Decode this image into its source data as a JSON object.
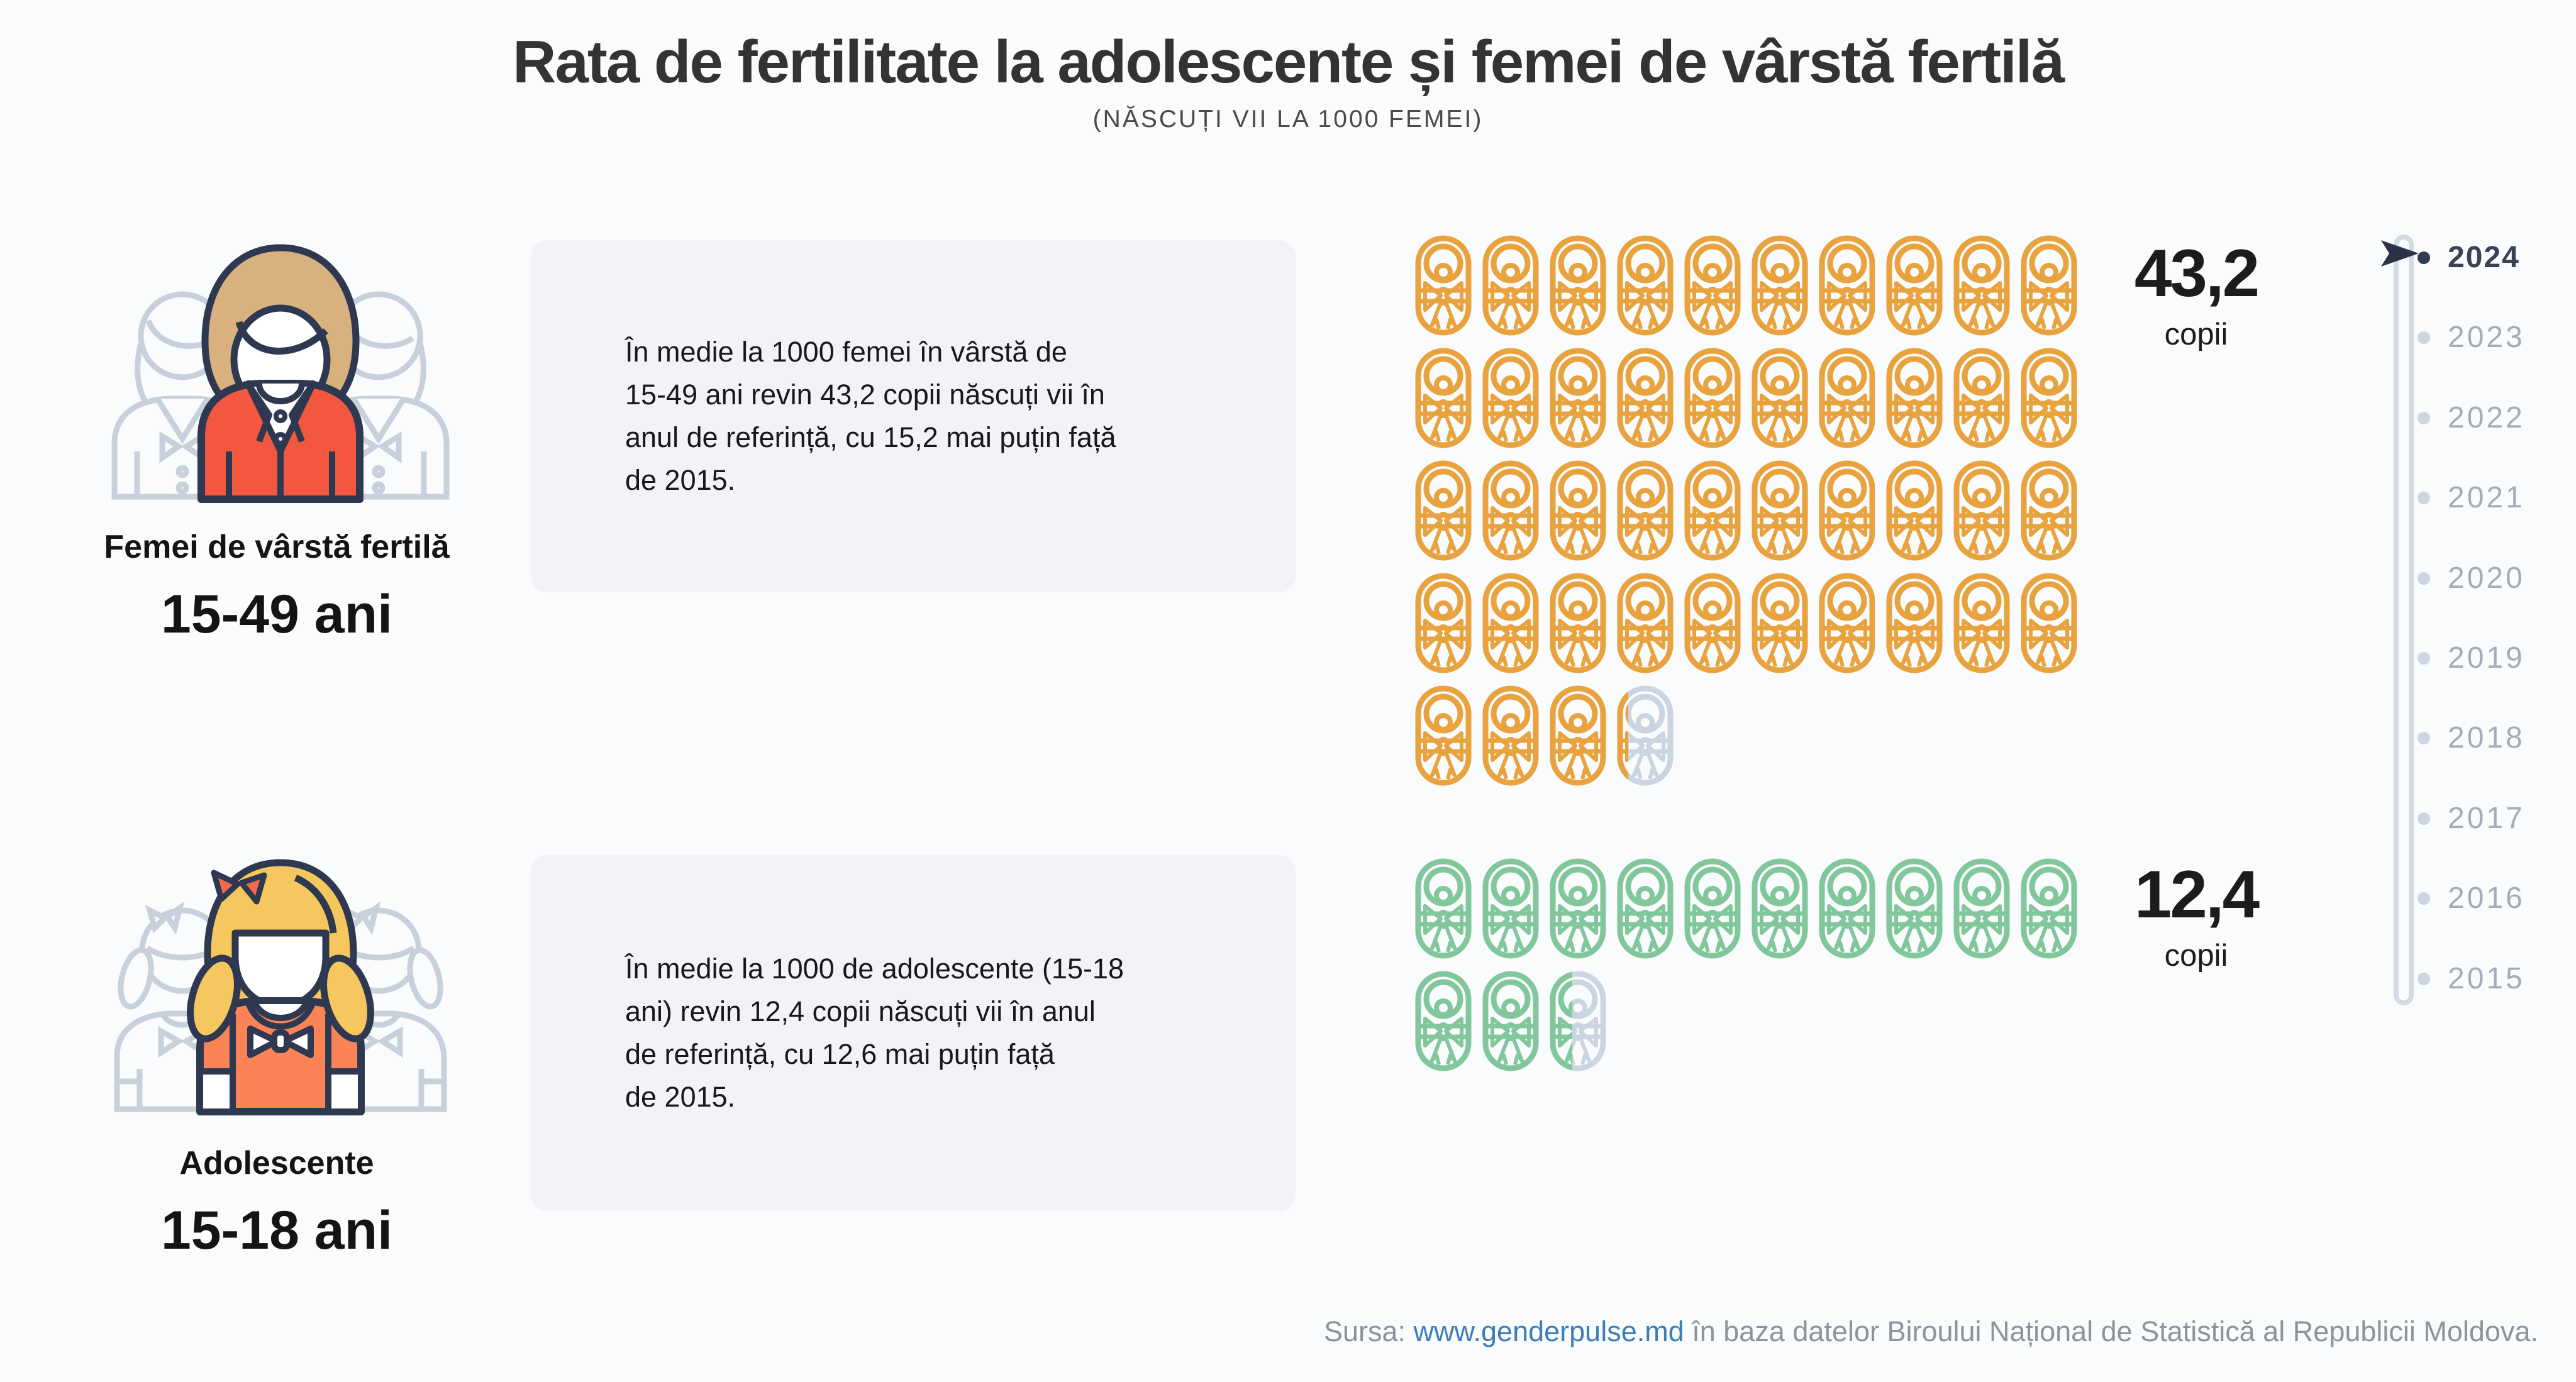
{
  "header": {
    "title": "Rata de fertilitate la adolescente și femei de vârstă fertilă",
    "subtitle": "(NĂSCUȚI VII LA 1000 FEMEI)"
  },
  "groups": [
    {
      "id": "femei",
      "label": "Femei de vârstă fertilă",
      "age_range": "15-49 ani",
      "description": "În medie la 1000 femei în vârstă de\n15-49 ani revin 43,2 copii născuți vii în\nanul de referință, cu 15,2 mai puțin față\nde 2015."
    },
    {
      "id": "adolescente",
      "label": "Adolescente",
      "age_range": "15-18 ani",
      "description": "În medie la 1000 de adolescente (15-18\nani) revin 12,4 copii născuți vii în anul\nde referință, cu 12,6 mai puțin față\nde 2015."
    }
  ],
  "chart_data": [
    {
      "type": "pictogram",
      "title": "Femei de vârstă fertilă (15-49 ani)",
      "value": 43.2,
      "value_label": "43,2",
      "unit_label": "copii",
      "unit": "copii născuți vii la 1000 femei",
      "icons_per_row": 10,
      "icon_unit": 1,
      "icon": "swaddled-baby",
      "color": "#E8A23E",
      "remainder_color": "#CBD5E1",
      "change_vs_2015": -15.2
    },
    {
      "type": "pictogram",
      "title": "Adolescente (15-18 ani)",
      "value": 12.4,
      "value_label": "12,4",
      "unit_label": "copii",
      "unit": "copii născuți vii la 1000 adolescente",
      "icons_per_row": 10,
      "icon_unit": 1,
      "icon": "swaddled-baby",
      "color": "#82C79C",
      "remainder_color": "#CBD5E1",
      "change_vs_2015": -12.6
    }
  ],
  "timeline": {
    "years": [
      "2024",
      "2023",
      "2022",
      "2021",
      "2020",
      "2019",
      "2018",
      "2017",
      "2016",
      "2015"
    ],
    "active_year": "2024"
  },
  "footer": {
    "prefix": "Sursa: ",
    "link": "www.genderpulse.md",
    "suffix": " în baza datelor Biroului Național de Statistică al Republicii Moldova."
  },
  "colors": {
    "background": "#FAFBFC",
    "box_background": "#F1F3F7",
    "outline_navy": "#2E3850",
    "jacket_red": "#F3573F",
    "shirt_orange": "#FB8457",
    "hair_tan": "#D8B17F",
    "hair_yellow": "#F6C75E",
    "hair_bow": "#F26A4B",
    "baby_orange": "#E8A23E",
    "baby_green": "#82C79C",
    "inactive_gray": "#CBD5E1",
    "track_gray": "#D5DBE3",
    "year_gray": "#A3ACB9",
    "year_active": "#3A4254",
    "arrow_navy": "#2A3348",
    "footer_gray": "#8B939F",
    "link_blue": "#3D7EB9"
  }
}
